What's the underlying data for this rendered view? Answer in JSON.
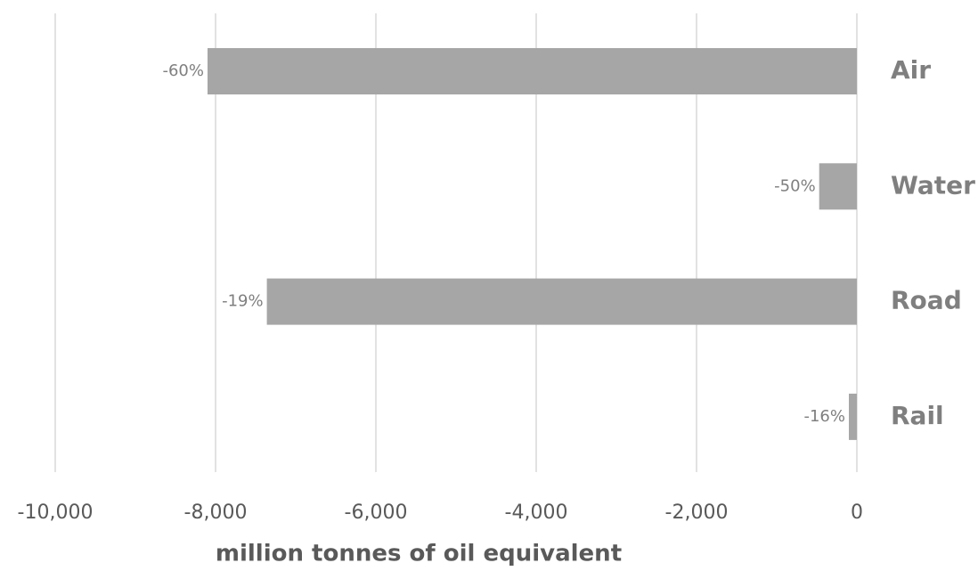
{
  "chart_data": {
    "type": "barh",
    "x_label": "million tonnes of oil equivalent",
    "categories": [
      "Air",
      "Water",
      "Road",
      "Rail"
    ],
    "values": [
      -8100,
      -470,
      -7360,
      -100
    ],
    "change_labels": [
      "-60%",
      "-50%",
      "-19%",
      "-16%"
    ],
    "color": "#a6a6a6",
    "xlim": [
      -10000,
      0
    ],
    "xticks": [
      {
        "value": -10000,
        "label": "-10,000"
      },
      {
        "value": -8000,
        "label": "-8,000"
      },
      {
        "value": -6000,
        "label": "-6,000"
      },
      {
        "value": -4000,
        "label": "-4,000"
      },
      {
        "value": -2000,
        "label": "-2,000"
      },
      0
    ],
    "grid": true
  }
}
